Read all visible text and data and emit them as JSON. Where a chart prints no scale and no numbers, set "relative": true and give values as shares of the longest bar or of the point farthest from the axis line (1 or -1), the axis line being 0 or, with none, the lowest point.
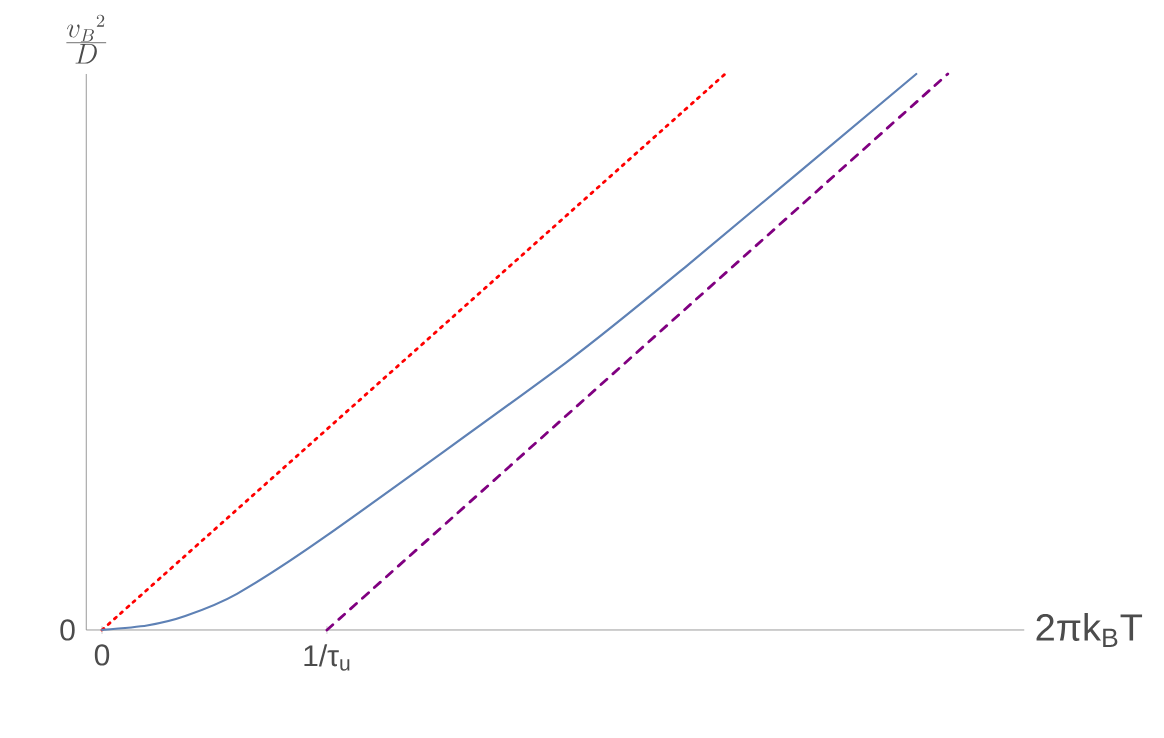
{
  "chart_data": {
    "type": "line",
    "relative": true,
    "xlabel": "2πk$_{B}$T",
    "ylabel": "\\frac{v_B{}^2}{D}",
    "xlim": [
      -0.07,
      4.1
    ],
    "xticks": [
      {
        "value": 0,
        "label": "0"
      },
      {
        "value": 1,
        "label": "1/τ$_{u}$"
      }
    ],
    "annotations": [
      "0"
    ],
    "grid": false,
    "marker": "none",
    "series": [
      {
        "color": "#ff0000",
        "line_style": "dotted",
        "x": [
          0,
          2.77
        ],
        "values": [
          0,
          1
        ]
      },
      {
        "color": "#5e81b5",
        "line_style": "solid",
        "x": [
          0,
          0.2,
          0.37,
          0.6,
          1,
          2.06,
          2.6,
          3.62
        ],
        "values": [
          0,
          0.008,
          0.025,
          0.065,
          0.17,
          0.48,
          0.655,
          1
        ]
      },
      {
        "color": "#800080",
        "line_style": "dashed",
        "x": [
          1,
          3.76
        ],
        "values": [
          0,
          1
        ]
      }
    ]
  }
}
